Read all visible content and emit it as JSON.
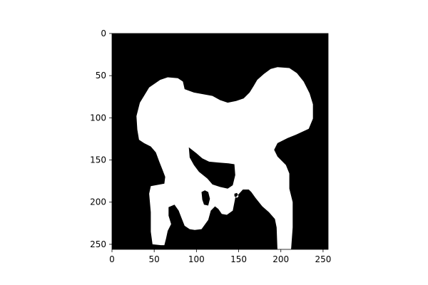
{
  "chart_data": {
    "type": "heatmap",
    "description_kind": "binary mask image",
    "title": "",
    "xlabel": "",
    "ylabel": "",
    "xlim": [
      0,
      256
    ],
    "ylim": [
      256,
      0
    ],
    "grid": false,
    "colors": {
      "background": "#000000",
      "foreground": "#ffffff"
    },
    "x_ticks": [
      0,
      50,
      100,
      150,
      200,
      250
    ],
    "y_ticks": [
      0,
      50,
      100,
      150,
      200,
      250
    ],
    "mask_outer_outline": [
      [
        62,
        251
      ],
      [
        58,
        251
      ],
      [
        48,
        250
      ],
      [
        46,
        235
      ],
      [
        46,
        212
      ],
      [
        44,
        190
      ],
      [
        46,
        181
      ],
      [
        62,
        178
      ],
      [
        63,
        170
      ],
      [
        60,
        162
      ],
      [
        56,
        152
      ],
      [
        52,
        141
      ],
      [
        46,
        134
      ],
      [
        38,
        130
      ],
      [
        32,
        126
      ],
      [
        30,
        114
      ],
      [
        29,
        98
      ],
      [
        33,
        82
      ],
      [
        44,
        64
      ],
      [
        57,
        55
      ],
      [
        66,
        52
      ],
      [
        78,
        53
      ],
      [
        84,
        57
      ],
      [
        86,
        66
      ],
      [
        97,
        70
      ],
      [
        108,
        72
      ],
      [
        119,
        74
      ],
      [
        128,
        79
      ],
      [
        137,
        82
      ],
      [
        147,
        80
      ],
      [
        156,
        77
      ],
      [
        163,
        70
      ],
      [
        168,
        62
      ],
      [
        172,
        55
      ],
      [
        180,
        48
      ],
      [
        188,
        42
      ],
      [
        196,
        40
      ],
      [
        210,
        41
      ],
      [
        219,
        47
      ],
      [
        227,
        57
      ],
      [
        234,
        71
      ],
      [
        238,
        84
      ],
      [
        238,
        101
      ],
      [
        233,
        113
      ],
      [
        218,
        120
      ],
      [
        208,
        124
      ],
      [
        196,
        130
      ],
      [
        192,
        138
      ],
      [
        196,
        146
      ],
      [
        206,
        156
      ],
      [
        210,
        166
      ],
      [
        210,
        184
      ],
      [
        214,
        200
      ],
      [
        214,
        230
      ],
      [
        212,
        258
      ],
      [
        196,
        258
      ],
      [
        195,
        230
      ],
      [
        193,
        220
      ],
      [
        186,
        212
      ],
      [
        178,
        205
      ],
      [
        170,
        195
      ],
      [
        165,
        188
      ],
      [
        162,
        185
      ],
      [
        155,
        185
      ],
      [
        146,
        195
      ],
      [
        143,
        210
      ],
      [
        136,
        215
      ],
      [
        130,
        214
      ],
      [
        126,
        208
      ],
      [
        122,
        205
      ],
      [
        117,
        210
      ],
      [
        114,
        221
      ],
      [
        106,
        232
      ],
      [
        98,
        233
      ],
      [
        92,
        232
      ],
      [
        86,
        228
      ],
      [
        82,
        218
      ],
      [
        79,
        210
      ],
      [
        74,
        203
      ],
      [
        67,
        206
      ],
      [
        67,
        216
      ],
      [
        70,
        226
      ],
      [
        66,
        234
      ],
      [
        64,
        243
      ],
      [
        62,
        251
      ]
    ],
    "mask_holes": [
      [
        [
          91,
          135
        ],
        [
          100,
          142
        ],
        [
          107,
          148
        ],
        [
          115,
          152
        ],
        [
          126,
          153
        ],
        [
          138,
          154
        ],
        [
          145,
          155
        ],
        [
          146,
          168
        ],
        [
          143,
          180
        ],
        [
          137,
          184
        ],
        [
          128,
          182
        ],
        [
          119,
          179
        ],
        [
          113,
          172
        ],
        [
          103,
          164
        ],
        [
          97,
          156
        ],
        [
          92,
          147
        ],
        [
          91,
          135
        ]
      ],
      [
        [
          106,
          188
        ],
        [
          110,
          186
        ],
        [
          114,
          188
        ],
        [
          116,
          196
        ],
        [
          114,
          204
        ],
        [
          109,
          203
        ],
        [
          107,
          197
        ],
        [
          106,
          188
        ]
      ],
      [
        [
          145,
          190
        ],
        [
          148,
          189
        ],
        [
          150,
          193
        ],
        [
          148,
          195
        ],
        [
          145,
          193
        ],
        [
          145,
          190
        ]
      ]
    ]
  }
}
